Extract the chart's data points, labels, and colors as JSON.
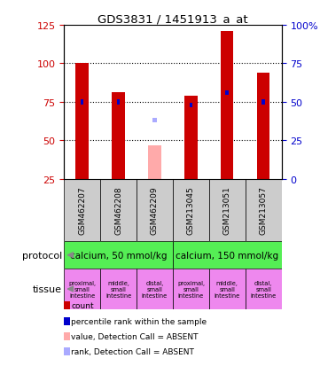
{
  "title": "GDS3831 / 1451913_a_at",
  "samples": [
    "GSM462207",
    "GSM462208",
    "GSM462209",
    "GSM213045",
    "GSM213051",
    "GSM213057"
  ],
  "count_values": [
    100,
    81,
    null,
    79,
    121,
    94
  ],
  "rank_values": [
    75,
    75,
    null,
    73,
    81,
    75
  ],
  "absent_value": 47,
  "absent_rank": 63,
  "absent_index": 2,
  "ylim_left": [
    25,
    125
  ],
  "ylim_right": [
    0,
    100
  ],
  "left_ticks": [
    25,
    50,
    75,
    100,
    125
  ],
  "right_ticks": [
    0,
    25,
    50,
    75,
    100
  ],
  "right_tick_labels": [
    "0",
    "25",
    "50",
    "75",
    "100%"
  ],
  "protocol_labels": [
    "calcium, 50 mmol/kg",
    "calcium, 150 mmol/kg"
  ],
  "tissue_labels": [
    "proximal,\nsmall\nintestine",
    "middle,\nsmall\nintestine",
    "distal,\nsmall\nintestine",
    "proximal,\nsmall\nintestine",
    "middle,\nsmall\nintestine",
    "distal,\nsmall\nintestine"
  ],
  "protocol_color": "#55ee55",
  "sample_bg_color": "#cccccc",
  "tissue_bg_color": "#ee88ee",
  "bar_color_count": "#cc0000",
  "bar_color_rank": "#0000cc",
  "bar_color_absent_value": "#ffaaaa",
  "bar_color_absent_rank": "#aaaaff",
  "legend_items": [
    {
      "color": "#cc0000",
      "label": "count"
    },
    {
      "color": "#0000cc",
      "label": "percentile rank within the sample"
    },
    {
      "color": "#ffaaaa",
      "label": "value, Detection Call = ABSENT"
    },
    {
      "color": "#aaaaff",
      "label": "rank, Detection Call = ABSENT"
    }
  ],
  "bar_width": 0.35,
  "rank_bar_width": 0.09
}
